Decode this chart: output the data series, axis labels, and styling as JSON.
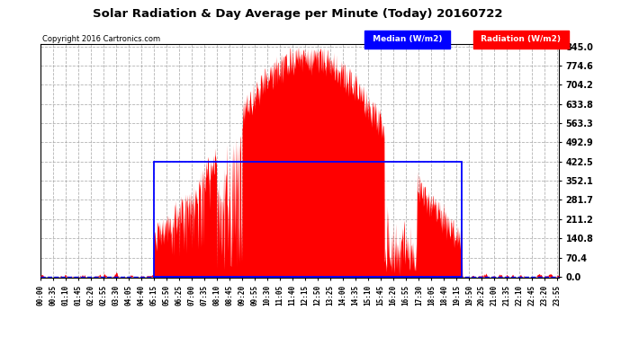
{
  "title": "Solar Radiation & Day Average per Minute (Today) 20160722",
  "copyright": "Copyright 2016 Cartronics.com",
  "legend_median_label": "Median (W/m2)",
  "legend_radiation_label": "Radiation (W/m2)",
  "yticks": [
    0.0,
    70.4,
    140.8,
    211.2,
    281.7,
    352.1,
    422.5,
    492.9,
    563.3,
    633.8,
    704.2,
    774.6,
    845.0
  ],
  "ymax": 845.0,
  "ymin": 0.0,
  "plot_bg_color": "#FFFFFF",
  "fig_bg_color": "#FFFFFF",
  "radiation_color": "#FF0000",
  "median_color": "#0000FF",
  "grid_color": "#A0A0A0",
  "median_level": 422.5,
  "median_xstart_minutes": 315,
  "median_xend_minutes": 1170,
  "sunrise_minute": 315,
  "sunset_minute": 1170,
  "total_minutes": 1440,
  "xtick_step": 35
}
